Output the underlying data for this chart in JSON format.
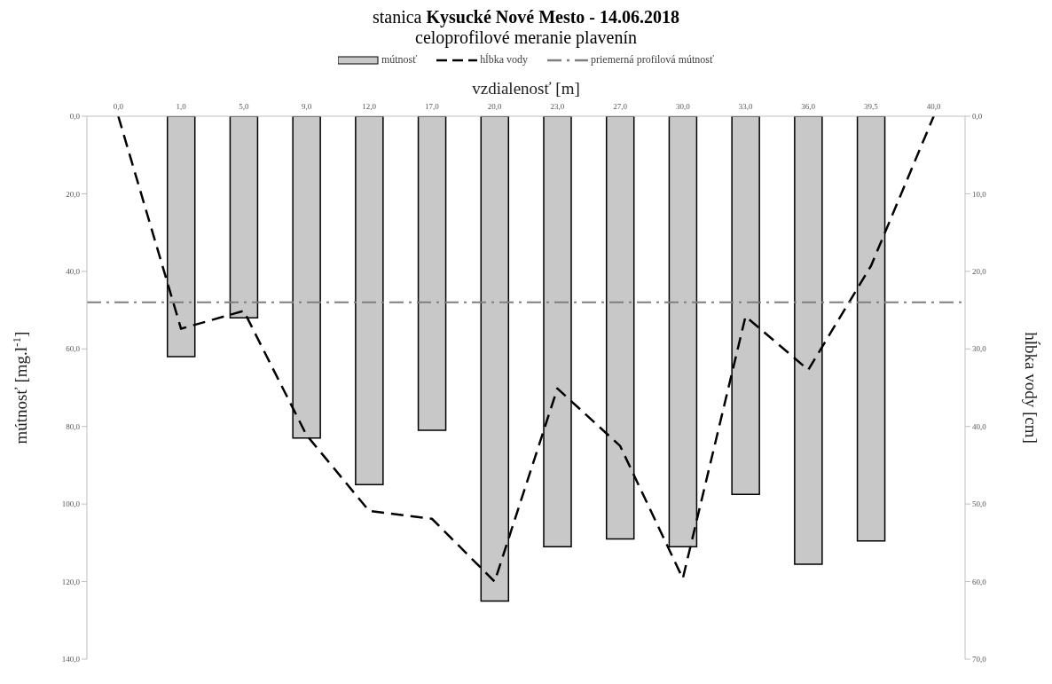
{
  "chart_data": {
    "type": "bar",
    "title": "stanica Kysucké Nové Mesto - 14.06.2018",
    "subtitle": "celoprofilové meranie plavenín",
    "xlabel": "vzdialenosť [m]",
    "ylabel": "mútnosť [mg.l$^{-1}$]",
    "y2label": "hĺbka vody [cm]",
    "categories": [
      "0,0",
      "1,0",
      "5,0",
      "9,0",
      "12,0",
      "17,0",
      "20,0",
      "23,0",
      "27,0",
      "30,0",
      "33,0",
      "36,0",
      "39,5",
      "40,0"
    ],
    "series": [
      {
        "name": "mútnosť",
        "color": "#c8c8c8",
        "values": [
          null,
          62,
          52,
          83,
          95,
          81,
          125,
          111,
          109,
          111,
          97.5,
          115.5,
          109.5,
          null
        ]
      },
      {
        "name": "hĺbka vody",
        "type": "line",
        "axis": "y2",
        "color": "#000000",
        "line_style": "dashed",
        "values": [
          0,
          27.4,
          25.1,
          41.1,
          50.9,
          51.9,
          60,
          35.1,
          42.5,
          59.6,
          25.8,
          32.7,
          19.3,
          0
        ]
      }
    ],
    "ylim": [
      140,
      0
    ],
    "yticks": [
      {
        "value": 0,
        "label": "0,0"
      },
      {
        "value": 20,
        "label": "20,0"
      },
      {
        "value": 40,
        "label": "40,0"
      },
      {
        "value": 60,
        "label": "60,0"
      },
      {
        "value": 80,
        "label": "80,0"
      },
      {
        "value": 100,
        "label": "100,0"
      },
      {
        "value": 120,
        "label": "120,0"
      },
      {
        "value": 140,
        "label": "140,0"
      }
    ],
    "y2lim": [
      70,
      0
    ],
    "y2ticks": [
      {
        "value": 0,
        "label": "0,0"
      },
      {
        "value": 10,
        "label": "10,0"
      },
      {
        "value": 20,
        "label": "20,0"
      },
      {
        "value": 30,
        "label": "30,0"
      },
      {
        "value": 40,
        "label": "40,0"
      },
      {
        "value": 50,
        "label": "50,0"
      },
      {
        "value": 60,
        "label": "60,0"
      },
      {
        "value": 70,
        "label": "70,0"
      }
    ],
    "ref_lines": [
      {
        "axis": "y",
        "value": 48,
        "label": "priemerná profilová mútnosť",
        "color": "#7f7f7f",
        "line_style": "dashdot"
      }
    ],
    "legend": "top",
    "grid": false,
    "marker": "none"
  }
}
